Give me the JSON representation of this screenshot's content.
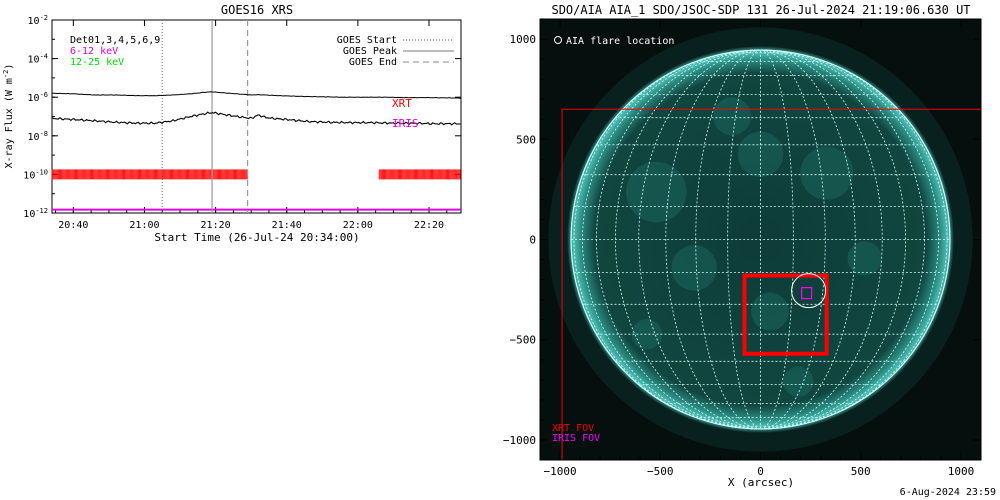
{
  "colors": {
    "goes_low": "#000000",
    "goes_high": "#000000",
    "xrt_marks": "#ff0000",
    "iris_line": "#e000e0",
    "legend_green": "#00dd00",
    "legend_magenta": "#e000e0",
    "sun_disk": "#0d3f3a",
    "sun_limb": "#3fb0a6",
    "grid": "#d0ffff",
    "fov_red": "#ff0000",
    "fov_magenta": "#ff00ff"
  },
  "chart_data": [
    {
      "type": "line",
      "title": "GOES16 XRS",
      "xlabel": "Start Time (26-Jul-24 20:34:00)",
      "ylabel": "X-ray Flux (W m",
      "ylabel_sup": "-2",
      "ylabel_close": ")",
      "y_scale": "log",
      "ylim": [
        1e-12,
        0.01
      ],
      "y_ticks": [
        {
          "v": 1e-12,
          "base": "10",
          "exp": "-12"
        },
        {
          "v": 1e-10,
          "base": "10",
          "exp": "-10"
        },
        {
          "v": 1e-08,
          "base": "10",
          "exp": "-8"
        },
        {
          "v": 1e-06,
          "base": "10",
          "exp": "-6"
        },
        {
          "v": 0.0001,
          "base": "10",
          "exp": "-4"
        },
        {
          "v": 0.01,
          "base": "10",
          "exp": "-2"
        }
      ],
      "xlim": [
        "20:34",
        "22:29"
      ],
      "x_ticks": [
        "20:40",
        "21:00",
        "21:20",
        "21:40",
        "22:00",
        "22:20"
      ],
      "legend_left": {
        "det": "Det01,3,4,5,6,9",
        "low": "6-12 keV",
        "high": "12-25 keV"
      },
      "legend_right": {
        "start": "GOES Start",
        "peak": "GOES Peak",
        "end": "GOES End"
      },
      "events": {
        "start": "21:05",
        "peak": "21:19",
        "end": "21:29"
      },
      "labels": {
        "xrt": "XRT",
        "iris": "IRIS"
      },
      "series": [
        {
          "name": "6-12 keV",
          "x": [
            "20:34",
            "20:40",
            "20:46",
            "20:52",
            "20:58",
            "21:03",
            "21:08",
            "21:13",
            "21:17",
            "21:19",
            "21:22",
            "21:26",
            "21:30",
            "21:32",
            "21:34",
            "21:38",
            "21:44",
            "21:50",
            "21:56",
            "22:02",
            "22:08",
            "22:14",
            "22:20",
            "22:29"
          ],
          "values": [
            1.6e-06,
            1.5e-06,
            1.3e-06,
            1.3e-06,
            1.2e-06,
            1.2e-06,
            1.3e-06,
            1.5e-06,
            1.8e-06,
            1.9e-06,
            1.7e-06,
            1.5e-06,
            1.3e-06,
            1.35e-06,
            1.3e-06,
            1.2e-06,
            1.1e-06,
            1.05e-06,
            1e-06,
            1e-06,
            1e-06,
            9.5e-07,
            9.5e-07,
            9e-07
          ]
        },
        {
          "name": "12-25 keV",
          "x": [
            "20:34",
            "20:40",
            "20:46",
            "20:52",
            "20:58",
            "21:03",
            "21:08",
            "21:13",
            "21:17",
            "21:19",
            "21:22",
            "21:26",
            "21:30",
            "21:32",
            "21:34",
            "21:36",
            "21:40",
            "21:46",
            "21:52",
            "21:58",
            "22:04",
            "22:10",
            "22:16",
            "22:22",
            "22:29"
          ],
          "values": [
            8e-08,
            7e-08,
            6e-08,
            5e-08,
            4.5e-08,
            4.5e-08,
            6e-08,
            1e-07,
            1.4e-07,
            1.6e-07,
            1.3e-07,
            1e-07,
            8e-08,
            1.2e-07,
            9e-08,
            8e-08,
            7e-08,
            5.5e-08,
            5e-08,
            4.8e-08,
            4.8e-08,
            4.5e-08,
            4.5e-08,
            4.2e-08,
            4.2e-08
          ]
        }
      ],
      "xrt_observations": [
        {
          "from": "20:34",
          "to": "21:29"
        },
        {
          "from": "22:06",
          "to": "22:29"
        }
      ],
      "xrt_level": 1e-10,
      "iris_level": 1.5e-12
    },
    {
      "type": "image",
      "title": "SDO/AIA AIA_1 SDO/JSOC-SDP 131 26-Jul-2024 21:19:06.630 UT",
      "xlabel": "X (arcsec)",
      "xlim": [
        -1100,
        1100
      ],
      "ylim": [
        -1100,
        1100
      ],
      "x_ticks": [
        -1000,
        -500,
        0,
        500,
        1000
      ],
      "y_ticks": [
        -1000,
        -500,
        0,
        500,
        1000
      ],
      "solar_radius": 945,
      "grid_spacing_deg": 10,
      "legend": {
        "flare": "AIA flare location"
      },
      "fov_labels": {
        "xrt": "XRT FOV",
        "iris": "IRIS FOV"
      },
      "xrt_fov_large": {
        "x": [
          -990,
          1100
        ],
        "y": [
          -1100,
          650
        ]
      },
      "xrt_fov_small": {
        "x": [
          -80,
          330
        ],
        "y": [
          -570,
          -180
        ]
      },
      "iris_fov": {
        "x": [
          205,
          255
        ],
        "y": [
          -295,
          -240
        ]
      },
      "flare_location": {
        "x": 240,
        "y": -255,
        "r": 85
      }
    }
  ],
  "footer": {
    "date": "6-Aug-2024 23:59"
  }
}
